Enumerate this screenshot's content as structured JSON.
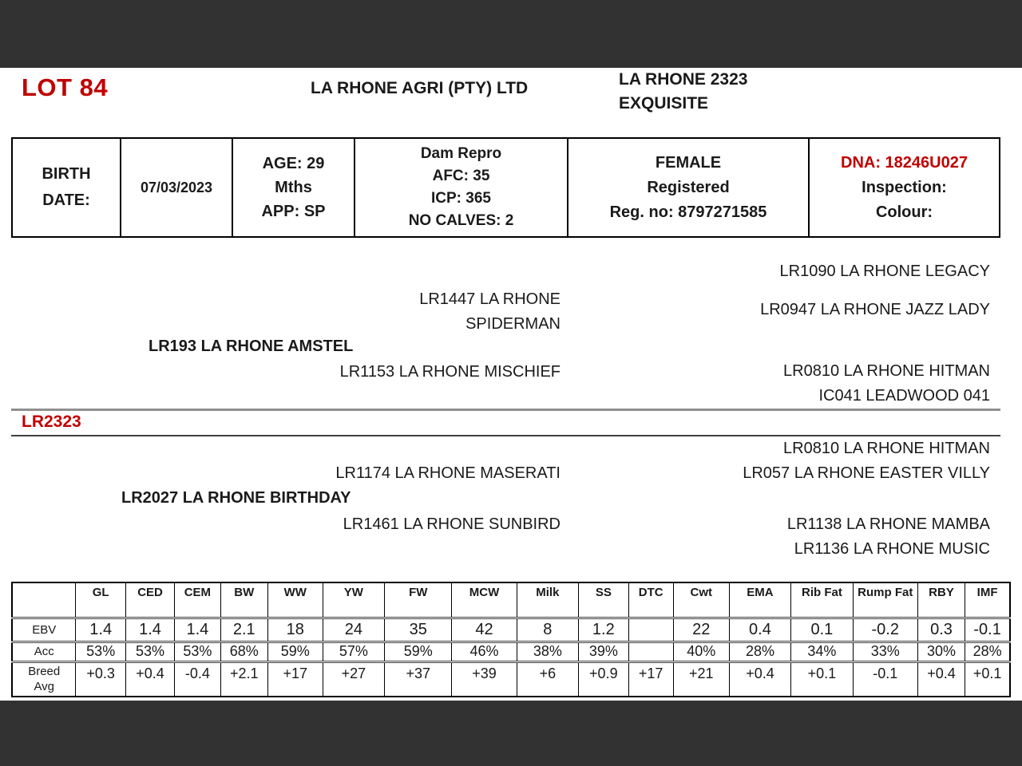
{
  "header": {
    "lot": "LOT 84",
    "company": "LA RHONE AGRI (PTY) LTD",
    "animal_line1": "LA RHONE 2323",
    "animal_line2": "EXQUISITE"
  },
  "info_panel": {
    "birth_label": [
      "BIRTH",
      "DATE:"
    ],
    "birth_date": "07/03/2023",
    "age": [
      "AGE: 29",
      "Mths",
      "APP: SP"
    ],
    "dam_repro": [
      "Dam Repro",
      "AFC: 35",
      "ICP: 365",
      "NO CALVES: 2"
    ],
    "registration": [
      "FEMALE",
      "Registered",
      "Reg. no: 8797271585"
    ],
    "dna": "DNA: 18246U027",
    "inspection_label": "Inspection:",
    "colour_label": "Colour:"
  },
  "pedigree": {
    "subject": "LR2323",
    "sire": "LR193 LA RHONE AMSTEL",
    "dam": "LR2027 LA RHONE BIRTHDAY",
    "sire_sire": [
      "LR1447 LA RHONE",
      "SPIDERMAN"
    ],
    "sire_dam": "LR1153 LA RHONE MISCHIEF",
    "dam_sire": "LR1174 LA RHONE MASERATI",
    "dam_dam": "LR1461 LA RHONE SUNBIRD",
    "sire_sire_sire": "LR1090 LA RHONE LEGACY",
    "sire_sire_dam": "LR0947 LA RHONE JAZZ LADY",
    "sire_dam_sire": "LR0810 LA RHONE HITMAN",
    "sire_dam_dam": "IC041 LEADWOOD 041",
    "dam_sire_sire": "LR0810 LA RHONE HITMAN",
    "dam_sire_dam": "LR057 LA RHONE EASTER VILLY",
    "dam_dam_sire": "LR1138 LA RHONE MAMBA",
    "dam_dam_dam": "LR1136 LA RHONE MUSIC"
  },
  "ebv_table": {
    "columns": [
      "GL",
      "CED",
      "CEM",
      "BW",
      "WW",
      "YW",
      "FW",
      "MCW",
      "Milk",
      "SS",
      "DTC",
      "Cwt",
      "EMA",
      "Rib Fat",
      "Rump Fat",
      "RBY",
      "IMF"
    ],
    "row_labels": [
      "EBV",
      "Acc",
      "Breed\nAvg"
    ],
    "ebv": [
      "1.4",
      "1.4",
      "1.4",
      "2.1",
      "18",
      "24",
      "35",
      "42",
      "8",
      "1.2",
      "",
      "22",
      "0.4",
      "0.1",
      "-0.2",
      "0.3",
      "-0.1"
    ],
    "acc": [
      "53%",
      "53%",
      "53%",
      "68%",
      "59%",
      "57%",
      "59%",
      "46%",
      "38%",
      "39%",
      "",
      "40%",
      "28%",
      "34%",
      "33%",
      "30%",
      "28%"
    ],
    "breed_avg": [
      "+0.3",
      "+0.4",
      "-0.4",
      "+2.1",
      "+17",
      "+27",
      "+37",
      "+39",
      "+6",
      "+0.9",
      "+17",
      "+21",
      "+0.4",
      "+0.1",
      "-0.1",
      "+0.4",
      "+0.1"
    ]
  },
  "colors": {
    "accent_red": "#c00000",
    "band_gray": "#323232"
  }
}
